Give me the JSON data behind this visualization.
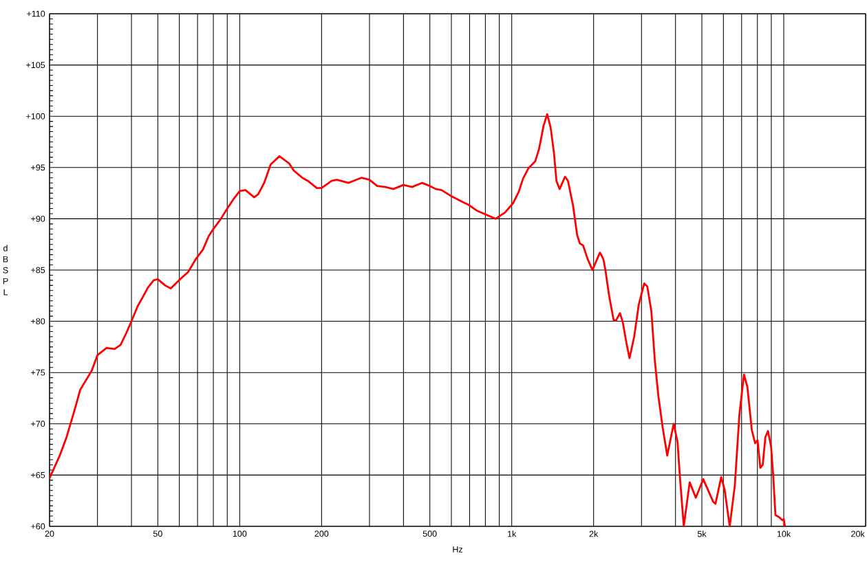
{
  "chart_data": {
    "type": "line",
    "xlabel": "Hz",
    "ylabel": "dB SPL",
    "log": "x",
    "xlim": [
      20,
      20000
    ],
    "ylim": [
      60,
      110
    ],
    "xticks": [
      20,
      {
        "value": 30,
        "label": null
      },
      {
        "value": 40,
        "label": null
      },
      50,
      {
        "value": 60,
        "label": null
      },
      {
        "value": 70,
        "label": null
      },
      {
        "value": 80,
        "label": null
      },
      {
        "value": 90,
        "label": null
      },
      100,
      200,
      {
        "value": 300,
        "label": null
      },
      {
        "value": 400,
        "label": null
      },
      500,
      {
        "value": 600,
        "label": null
      },
      {
        "value": 700,
        "label": null
      },
      {
        "value": 800,
        "label": null
      },
      {
        "value": 900,
        "label": null
      },
      {
        "value": 1000,
        "label": "1k"
      },
      {
        "value": 2000,
        "label": "2k"
      },
      {
        "value": 3000,
        "label": null
      },
      {
        "value": 4000,
        "label": null
      },
      {
        "value": 5000,
        "label": "5k"
      },
      {
        "value": 6000,
        "label": null
      },
      {
        "value": 7000,
        "label": null
      },
      {
        "value": 8000,
        "label": null
      },
      {
        "value": 9000,
        "label": null
      },
      {
        "value": 10000,
        "label": "10k"
      },
      {
        "value": 20000,
        "label": "20k"
      }
    ],
    "yticks": [
      {
        "value": 60,
        "label": "+60"
      },
      {
        "value": 65,
        "label": "+65"
      },
      {
        "value": 70,
        "label": "+70"
      },
      {
        "value": 75,
        "label": "+75"
      },
      {
        "value": 80,
        "label": "+80"
      },
      {
        "value": 85,
        "label": "+85"
      },
      {
        "value": 90,
        "label": "+90"
      },
      {
        "value": 95,
        "label": "+95"
      },
      {
        "value": 100,
        "label": "+100"
      },
      {
        "value": 105,
        "label": "+105"
      },
      {
        "value": 110,
        "label": "+110"
      }
    ],
    "grid": true,
    "marker": "none",
    "line_style": "solid",
    "color": "#ff0000",
    "x": [
      20,
      21.8,
      23.1,
      24,
      25,
      25.9,
      27,
      28.6,
      30,
      32.4,
      34.7,
      36.5,
      38.2,
      40,
      42.2,
      43.9,
      46,
      48.3,
      50,
      53.2,
      55.8,
      59.8,
      64.6,
      69.1,
      73.3,
      76.9,
      80,
      84.8,
      90,
      95.4,
      100,
      105,
      113,
      117,
      123,
      130,
      140,
      152,
      158,
      170,
      178,
      192,
      200,
      218,
      228,
      251,
      280,
      300,
      320,
      343,
      367,
      400,
      430,
      468,
      500,
      526,
      552,
      600,
      664,
      690,
      744,
      806,
      872,
      944,
      1010,
      1060,
      1100,
      1150,
      1220,
      1260,
      1310,
      1350,
      1390,
      1430,
      1460,
      1500,
      1570,
      1610,
      1680,
      1740,
      1780,
      1830,
      1900,
      1980,
      2110,
      2170,
      2210,
      2280,
      2370,
      2420,
      2500,
      2560,
      2640,
      2710,
      2820,
      2930,
      3070,
      3150,
      3260,
      3360,
      3460,
      3590,
      3730,
      3940,
      4070,
      4150,
      4290,
      4510,
      4750,
      5060,
      5500,
      5610,
      5890,
      6060,
      6330,
      6610,
      6870,
      7140,
      7350,
      7630,
      7850,
      8010,
      8200,
      8370,
      8560,
      8750,
      8980,
      9150,
      9320,
      9600,
      9880,
      10000,
      10100
    ],
    "values": [
      64.7,
      66.9,
      68.7,
      70.2,
      71.8,
      73.3,
      74.1,
      75.2,
      76.7,
      77.4,
      77.3,
      77.7,
      78.8,
      80.0,
      81.5,
      82.3,
      83.3,
      84.0,
      84.1,
      83.5,
      83.2,
      84.0,
      84.8,
      86.1,
      87.0,
      88.3,
      89.0,
      89.9,
      91.0,
      92.0,
      92.7,
      92.8,
      92.1,
      92.4,
      93.5,
      95.3,
      96.1,
      95.4,
      94.7,
      94.0,
      93.7,
      93.0,
      93.0,
      93.7,
      93.8,
      93.5,
      94.0,
      93.8,
      93.2,
      93.1,
      92.9,
      93.3,
      93.1,
      93.5,
      93.2,
      92.9,
      92.8,
      92.2,
      91.6,
      91.4,
      90.8,
      90.4,
      90.0,
      90.6,
      91.5,
      92.6,
      93.9,
      94.9,
      95.6,
      96.8,
      99.1,
      100.2,
      98.9,
      96.4,
      93.7,
      92.9,
      94.1,
      93.7,
      91.3,
      88.4,
      87.6,
      87.4,
      86.1,
      85.0,
      86.7,
      86.1,
      85.0,
      82.5,
      80.1,
      80.1,
      80.8,
      79.9,
      77.9,
      76.4,
      78.5,
      81.6,
      83.7,
      83.4,
      81.0,
      76.1,
      72.7,
      69.6,
      66.9,
      70.0,
      68.2,
      64.9,
      60.0,
      64.3,
      62.8,
      64.6,
      62.4,
      62.2,
      64.8,
      63.6,
      60.0,
      64.0,
      70.9,
      74.8,
      73.6,
      69.4,
      68.1,
      68.4,
      65.7,
      66.0,
      68.7,
      69.3,
      67.8,
      64.9,
      61.1,
      60.9,
      60.6,
      60.7,
      60.0
    ]
  }
}
